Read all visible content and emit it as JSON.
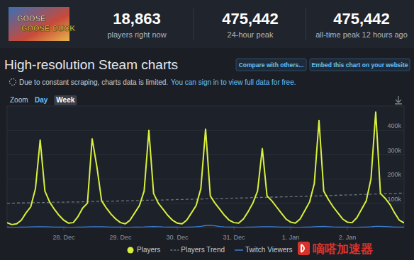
{
  "page": {
    "game_title": "GOOSE GOOSE DUCK",
    "stats": [
      {
        "value": "18,863",
        "label": "players right now"
      },
      {
        "value": "475,442",
        "label": "24-hour peak"
      },
      {
        "value": "475,442",
        "label": "all-time peak 12 hours ago"
      }
    ],
    "heading": "High-resolution Steam charts",
    "buttons": [
      "Compare with others...",
      "Embed this chart on your website"
    ],
    "notice": {
      "text": "Due to constant scraping, charts data is limited.",
      "link": "You can sign in to view full data for free."
    },
    "zoom": {
      "label": "Zoom",
      "options": [
        "Day",
        "Week"
      ]
    },
    "watermark": "嘀嗒加速器"
  },
  "chart_data": {
    "type": "line",
    "categories": [
      null,
      null,
      null,
      null,
      null,
      null,
      null,
      null,
      null,
      null,
      null,
      null,
      "28. Dec",
      null,
      null,
      null,
      null,
      null,
      null,
      null,
      null,
      null,
      null,
      null,
      "29. Dec",
      null,
      null,
      null,
      null,
      null,
      null,
      null,
      null,
      null,
      null,
      null,
      "30. Dec",
      null,
      null,
      null,
      null,
      null,
      null,
      null,
      null,
      null,
      null,
      null,
      "31. Dec",
      null,
      null,
      null,
      null,
      null,
      null,
      null,
      null,
      null,
      null,
      null,
      "1. Jan",
      null,
      null,
      null,
      null,
      null,
      null,
      null,
      null,
      null,
      null,
      null,
      "2. Jan",
      null,
      null,
      null,
      null,
      null,
      null,
      null,
      null,
      null,
      null,
      null,
      null
    ],
    "series": [
      {
        "name": "Players",
        "color": "#d9f03c",
        "line_style": "solid",
        "values": [
          20000,
          12000,
          15000,
          30000,
          60000,
          85000,
          160000,
          360000,
          150000,
          105000,
          75000,
          50000,
          30000,
          18000,
          20000,
          45000,
          80000,
          100000,
          365000,
          250000,
          110000,
          80000,
          55000,
          35000,
          20000,
          15000,
          30000,
          60000,
          90000,
          150000,
          400000,
          140000,
          100000,
          75000,
          50000,
          30000,
          18000,
          15000,
          30000,
          60000,
          90000,
          160000,
          405000,
          130000,
          100000,
          75000,
          50000,
          30000,
          20000,
          18000,
          35000,
          65000,
          100000,
          150000,
          325000,
          130000,
          110000,
          85000,
          60000,
          35000,
          22000,
          18000,
          35000,
          70000,
          105000,
          180000,
          440000,
          150000,
          115000,
          85000,
          60000,
          35000,
          22000,
          20000,
          40000,
          75000,
          110000,
          200000,
          475442,
          140000,
          120000,
          95000,
          60000,
          30000,
          18863
        ]
      },
      {
        "name": "Players Trend",
        "color": "#6c7582",
        "line_style": "dashed",
        "values": [
          100000,
          100000,
          101000,
          101000,
          101000,
          102000,
          102000,
          103000,
          103000,
          103000,
          104000,
          104000,
          104000,
          105000,
          105000,
          105000,
          106000,
          106000,
          107000,
          107000,
          108000,
          108000,
          108000,
          109000,
          109000,
          110000,
          110000,
          111000,
          111000,
          112000,
          112000,
          113000,
          113000,
          113000,
          114000,
          114000,
          115000,
          115000,
          116000,
          116000,
          117000,
          117000,
          118000,
          118000,
          119000,
          119000,
          120000,
          120000,
          121000,
          121000,
          122000,
          122000,
          123000,
          123000,
          124000,
          124000,
          125000,
          125000,
          126000,
          126000,
          127000,
          127000,
          128000,
          128000,
          129000,
          130000,
          130000,
          131000,
          131000,
          132000,
          133000,
          133000,
          134000,
          134000,
          135000,
          136000,
          136000,
          137000,
          138000,
          138000,
          139000,
          140000,
          140000,
          141000,
          141000
        ]
      },
      {
        "name": "Twitch Viewers",
        "color": "#3d7fd6",
        "line_style": "solid",
        "values": [
          1500,
          1200,
          1200,
          1500,
          2000,
          2500,
          3000,
          3500,
          3000,
          2500,
          2000,
          1800,
          1500,
          1200,
          1200,
          1500,
          2000,
          2500,
          3000,
          3500,
          3000,
          2500,
          2000,
          1800,
          1500,
          1200,
          1200,
          1500,
          2000,
          2500,
          3500,
          4000,
          3500,
          2500,
          2000,
          1800,
          1500,
          1200,
          1500,
          2000,
          3000,
          5000,
          8000,
          9000,
          7000,
          4000,
          2500,
          1800,
          1500,
          1200,
          1200,
          1500,
          2000,
          2500,
          3000,
          3500,
          3000,
          2500,
          2000,
          1800,
          1500,
          1200,
          1200,
          1500,
          2000,
          3000,
          4000,
          4500,
          3500,
          2500,
          2000,
          1800,
          1500,
          1200,
          1200,
          1500,
          2000,
          3000,
          4500,
          5000,
          4000,
          3000,
          2000,
          1800,
          1500
        ]
      }
    ],
    "ylim": [
      0,
      500000
    ],
    "yticks": [
      {
        "value": 100000,
        "label": "100k"
      },
      {
        "value": 200000,
        "label": "200k"
      },
      {
        "value": 300000,
        "label": "300k"
      },
      {
        "value": 400000,
        "label": "400k"
      }
    ],
    "grid": true,
    "legend": "bottom"
  }
}
